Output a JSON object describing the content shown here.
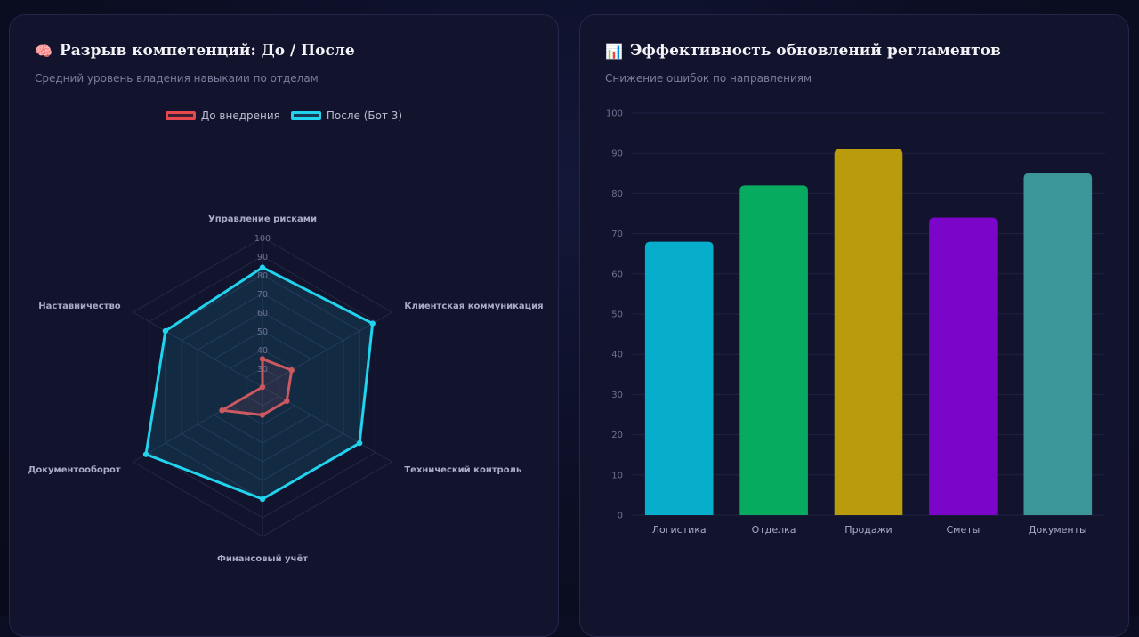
{
  "radar_card": {
    "icon": "brain-icon",
    "title": "Разрыв компетенций: До / После",
    "subtitle": "Средний уровень владения навыками по отделам"
  },
  "bar_card": {
    "icon": "bar-chart-icon",
    "title": "Эффективность обновлений регламентов",
    "subtitle": "Снижение ошибок по направлениям"
  },
  "chart_data": [
    {
      "type": "radar",
      "axes": [
        "Управление рисками",
        "Клиентская коммуникация",
        "Технический контроль",
        "Финансовый учёт",
        "Документооборот",
        "Наставничество"
      ],
      "rlim": [
        20,
        100
      ],
      "ticks": [
        30,
        40,
        50,
        60,
        70,
        80,
        90,
        100
      ],
      "legend_position": "top",
      "grid": true,
      "series": [
        {
          "name": "До внедрения",
          "color": "#e5484d",
          "values": [
            35,
            38,
            35,
            35,
            45,
            20
          ]
        },
        {
          "name": "После (Бот 3)",
          "color": "#22d3ee",
          "values": [
            84,
            88,
            80,
            80,
            92,
            80
          ]
        }
      ]
    },
    {
      "type": "bar",
      "categories": [
        "Логистика",
        "Отделка",
        "Продажи",
        "Сметы",
        "Документы"
      ],
      "values": [
        68,
        82,
        91,
        74,
        85
      ],
      "colors": [
        "#06aecb",
        "#06ab5f",
        "#b99b0b",
        "#7b05c8",
        "#3a9698"
      ],
      "ylim": [
        0,
        100
      ],
      "yticks": [
        0,
        10,
        20,
        30,
        40,
        50,
        60,
        70,
        80,
        90,
        100
      ],
      "grid": true
    }
  ]
}
